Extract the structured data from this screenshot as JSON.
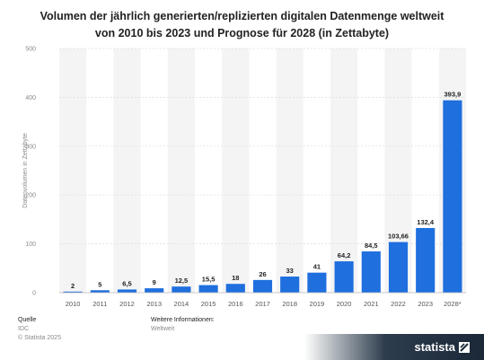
{
  "header": {
    "title_line1": "Volumen der jährlich generierten/replizierten digitalen Datenmenge weltweit",
    "title_line2": "von 2010 bis 2023 und Prognose für 2028 (in Zettabyte)"
  },
  "chart_data": {
    "type": "bar",
    "title": "Volumen der jährlich generierten/replizierten digitalen Datenmenge weltweit von 2010 bis 2023 und Prognose für 2028 (in Zettabyte)",
    "xlabel": "",
    "ylabel": "Datenvolumen in Zettabyte",
    "ylim": [
      0,
      500
    ],
    "yticks": [
      "0",
      "100",
      "200",
      "300",
      "400",
      "500"
    ],
    "categories": [
      "2010",
      "2011",
      "2012",
      "2013",
      "2014",
      "2015",
      "2016",
      "2017",
      "2018",
      "2019",
      "2020",
      "2021",
      "2022",
      "2023",
      "2028*"
    ],
    "values": [
      2,
      5,
      6.5,
      9,
      12.5,
      15.5,
      18,
      26,
      33,
      41,
      64.2,
      84.5,
      103.66,
      132.4,
      393.9
    ],
    "value_labels": [
      "2",
      "5",
      "6,5",
      "9",
      "12,5",
      "15,5",
      "18",
      "26",
      "33",
      "41",
      "64,2",
      "84,5",
      "103,66",
      "132,4",
      "393,9"
    ],
    "grid": true,
    "bar_color": "#1f6fde"
  },
  "footer": {
    "source_label": "Quelle",
    "source_value": "IDC",
    "copyright": "© Statista 2025",
    "info_label": "Weitere Informationen:",
    "info_value": "Weltweit"
  },
  "brand": {
    "name": "statista"
  }
}
